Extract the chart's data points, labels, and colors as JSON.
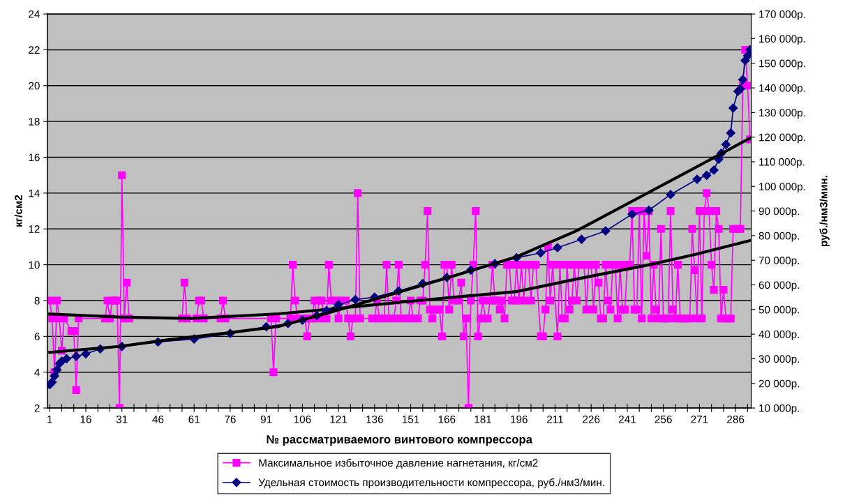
{
  "chart_data": {
    "type": "line",
    "xlabel": "№ рассматриваемого винтового компрессора",
    "ylabel": "кг/см2",
    "y2label": "руб./нм3/мин.",
    "xlim": [
      0,
      292.5
    ],
    "xticks": [
      1,
      {
        "value": 6,
        "label": null
      },
      {
        "value": 11,
        "label": null
      },
      16,
      {
        "value": 21,
        "label": null
      },
      {
        "value": 26,
        "label": null
      },
      31,
      {
        "value": 36,
        "label": null
      },
      {
        "value": 41,
        "label": null
      },
      46,
      {
        "value": 51,
        "label": null
      },
      {
        "value": 56,
        "label": null
      },
      61,
      {
        "value": 66,
        "label": null
      },
      {
        "value": 71,
        "label": null
      },
      76,
      {
        "value": 81,
        "label": null
      },
      {
        "value": 86,
        "label": null
      },
      91,
      {
        "value": 96,
        "label": null
      },
      {
        "value": 101,
        "label": null
      },
      106,
      {
        "value": 111,
        "label": null
      },
      {
        "value": 116,
        "label": null
      },
      121,
      {
        "value": 126,
        "label": null
      },
      {
        "value": 131,
        "label": null
      },
      136,
      {
        "value": 141,
        "label": null
      },
      {
        "value": 146,
        "label": null
      },
      151,
      {
        "value": 156,
        "label": null
      },
      {
        "value": 161,
        "label": null
      },
      166,
      {
        "value": 171,
        "label": null
      },
      {
        "value": 176,
        "label": null
      },
      181,
      {
        "value": 186,
        "label": null
      },
      {
        "value": 191,
        "label": null
      },
      196,
      {
        "value": 201,
        "label": null
      },
      {
        "value": 206,
        "label": null
      },
      211,
      {
        "value": 216,
        "label": null
      },
      {
        "value": 221,
        "label": null
      },
      226,
      {
        "value": 231,
        "label": null
      },
      {
        "value": 236,
        "label": null
      },
      241,
      {
        "value": 246,
        "label": null
      },
      {
        "value": 251,
        "label": null
      },
      256,
      {
        "value": 261,
        "label": null
      },
      {
        "value": 266,
        "label": null
      },
      271,
      {
        "value": 276,
        "label": null
      },
      {
        "value": 281,
        "label": null
      },
      286,
      {
        "value": 291,
        "label": null
      }
    ],
    "ylim": [
      2,
      24
    ],
    "yticks": [
      2,
      4,
      6,
      8,
      10,
      12,
      14,
      16,
      18,
      20,
      22,
      24
    ],
    "y2lim": [
      10000,
      170000
    ],
    "y2ticks": [
      {
        "value": 10000,
        "label": "10 000р."
      },
      {
        "value": 20000,
        "label": "20 000р."
      },
      {
        "value": 30000,
        "label": "30 000р."
      },
      {
        "value": 40000,
        "label": "40 000р."
      },
      {
        "value": 50000,
        "label": "50 000р."
      },
      {
        "value": 60000,
        "label": "60 000р."
      },
      {
        "value": 70000,
        "label": "70 000р."
      },
      {
        "value": 80000,
        "label": "80 000р."
      },
      {
        "value": 90000,
        "label": "90 000р."
      },
      {
        "value": 100000,
        "label": "100 000р."
      },
      {
        "value": 110000,
        "label": "110 000р."
      },
      {
        "value": 120000,
        "label": "120 000р."
      },
      {
        "value": 130000,
        "label": "130 000р."
      },
      {
        "value": 140000,
        "label": "140 000р."
      },
      {
        "value": 150000,
        "label": "150 000р."
      },
      {
        "value": 160000,
        "label": "160 000р."
      },
      {
        "value": 170000,
        "label": "170 000р."
      }
    ],
    "grid": "y",
    "legend": "bottom",
    "series": [
      {
        "name": "Максимальное избыточное давление нагнетания, кг/см2",
        "color": "#ff00ff",
        "marker": "square",
        "x": [
          1,
          2,
          3,
          4,
          5,
          6,
          7,
          10,
          11,
          12,
          13,
          24,
          25,
          26,
          27,
          28,
          29,
          30,
          31,
          32,
          33,
          34,
          56,
          57,
          58,
          62,
          63,
          64,
          65,
          72,
          73,
          74,
          93,
          94,
          95,
          101,
          102,
          103,
          104,
          107,
          108,
          109,
          110,
          111,
          112,
          113,
          114,
          115,
          116,
          117,
          118,
          120,
          121,
          122,
          124,
          125,
          126,
          127,
          128,
          129,
          130,
          135,
          136,
          137,
          138,
          140,
          141,
          142,
          144,
          145,
          146,
          147,
          150,
          151,
          152,
          154,
          155,
          156,
          157,
          158,
          159,
          160,
          161,
          163,
          164,
          165,
          166,
          167,
          168,
          169,
          171,
          172,
          173,
          174,
          175,
          176,
          177,
          178,
          179,
          180,
          181,
          182,
          183,
          184,
          185,
          186,
          187,
          188,
          189,
          190,
          191,
          192,
          193,
          194,
          195,
          196,
          197,
          198,
          199,
          200,
          201,
          202,
          203,
          205,
          206,
          207,
          208,
          209,
          210,
          212,
          213,
          214,
          215,
          216,
          217,
          218,
          219,
          220,
          221,
          222,
          223,
          224,
          225,
          226,
          227,
          228,
          229,
          230,
          231,
          232,
          233,
          234,
          235,
          236,
          237,
          238,
          239,
          240,
          241,
          242,
          243,
          244,
          245,
          246,
          247,
          248,
          249,
          250,
          251,
          252,
          253,
          254,
          255,
          256,
          257,
          258,
          259,
          260,
          261,
          262,
          263,
          264,
          265,
          266,
          267,
          268,
          269,
          270,
          271,
          272,
          273,
          274,
          275,
          276,
          277,
          278,
          279,
          280,
          281,
          282,
          283,
          284,
          285,
          286,
          287,
          288,
          289,
          290,
          291,
          292
        ],
        "values": [
          8,
          7,
          4,
          8,
          7,
          5.2,
          7,
          6.3,
          6.3,
          3,
          7,
          7,
          8,
          7,
          8,
          8,
          8,
          2,
          15,
          7,
          9,
          7,
          7,
          9,
          7,
          7,
          8,
          8,
          7,
          7,
          8,
          7,
          7,
          4,
          7,
          7,
          10,
          8,
          7,
          7,
          6,
          7,
          7,
          8,
          7,
          8,
          8,
          7,
          7,
          10,
          8,
          8,
          7,
          8,
          8,
          7,
          6,
          7,
          7,
          14,
          7,
          7,
          7,
          8,
          7,
          7,
          10,
          7,
          7,
          8,
          10,
          7,
          7,
          8,
          7,
          7,
          8,
          8,
          10,
          13,
          7.5,
          7,
          7.5,
          7.5,
          6,
          10,
          10,
          7.5,
          10,
          8,
          8,
          9,
          6,
          7,
          2,
          8,
          10,
          13,
          6,
          7,
          8,
          7,
          7,
          8,
          10,
          8,
          8,
          7.5,
          8,
          7,
          10,
          10,
          8,
          8,
          10,
          8,
          10,
          8,
          10,
          10,
          8,
          10,
          10,
          6,
          6,
          7.5,
          11,
          8,
          10,
          6,
          10,
          7,
          7,
          10,
          7.5,
          8,
          10,
          8,
          10,
          10,
          10,
          7.5,
          10,
          10,
          7.5,
          10,
          9,
          7,
          7,
          10,
          8,
          7.5,
          10,
          10,
          7,
          10,
          7.5,
          7.5,
          10,
          10,
          13,
          7.5,
          7.5,
          13,
          7,
          13,
          10.5,
          13,
          7,
          10,
          7.5,
          7,
          12,
          7,
          7,
          7,
          13,
          7.5,
          7,
          10,
          7,
          7,
          7,
          7,
          7,
          12,
          9.7,
          7,
          13,
          7,
          13,
          14,
          13,
          10,
          8.6,
          13,
          12,
          7,
          8.6,
          7,
          7,
          7,
          12,
          12,
          12,
          12,
          20,
          22,
          20,
          17
        ]
      },
      {
        "name": "Удельная стоимость производительности компрессора, руб./нм3/мин.",
        "color": "#000080",
        "marker": "diamond",
        "axis": "y2",
        "x": [
          1,
          2,
          3,
          4,
          5,
          6,
          8,
          12,
          16,
          22,
          31,
          46,
          61,
          76,
          91,
          100,
          106,
          112,
          116,
          121,
          128,
          136,
          146,
          156,
          166,
          176,
          186,
          195,
          205,
          212,
          222,
          232,
          243,
          250,
          259,
          270,
          274,
          277,
          279,
          280,
          282,
          284,
          285,
          287,
          288,
          289,
          290,
          291,
          292
        ],
        "values": [
          19500,
          20500,
          23000,
          25500,
          28000,
          29000,
          30000,
          31000,
          32000,
          34000,
          35000,
          36800,
          38000,
          40300,
          43000,
          44300,
          45700,
          47500,
          49500,
          52000,
          54000,
          55000,
          57500,
          60500,
          63000,
          66000,
          68600,
          71000,
          73000,
          75100,
          78500,
          81900,
          88700,
          90300,
          96700,
          102900,
          104500,
          106600,
          111000,
          113400,
          117000,
          121700,
          131800,
          138600,
          139500,
          143300,
          151100,
          153000,
          155500
        ]
      },
      {
        "type": "line",
        "color": "#000000",
        "marker": "none",
        "x": [
          1,
          30,
          60,
          96,
          120,
          148,
          170,
          195,
          220,
          252,
          270,
          292
        ],
        "values": [
          7.25,
          7.08,
          7.0,
          7.26,
          7.55,
          7.92,
          8.2,
          8.5,
          9.2,
          10.05,
          10.6,
          11.35
        ]
      },
      {
        "type": "line",
        "color": "#000000",
        "marker": "none",
        "axis": "y2",
        "x": [
          1,
          30,
          51,
          75,
          96,
          120,
          148,
          170,
          195,
          220,
          250,
          270,
          292
        ],
        "values": [
          32600,
          35000,
          37800,
          40500,
          43100,
          49500,
          57600,
          64000,
          71400,
          82000,
          97600,
          108000,
          119600
        ]
      }
    ]
  }
}
